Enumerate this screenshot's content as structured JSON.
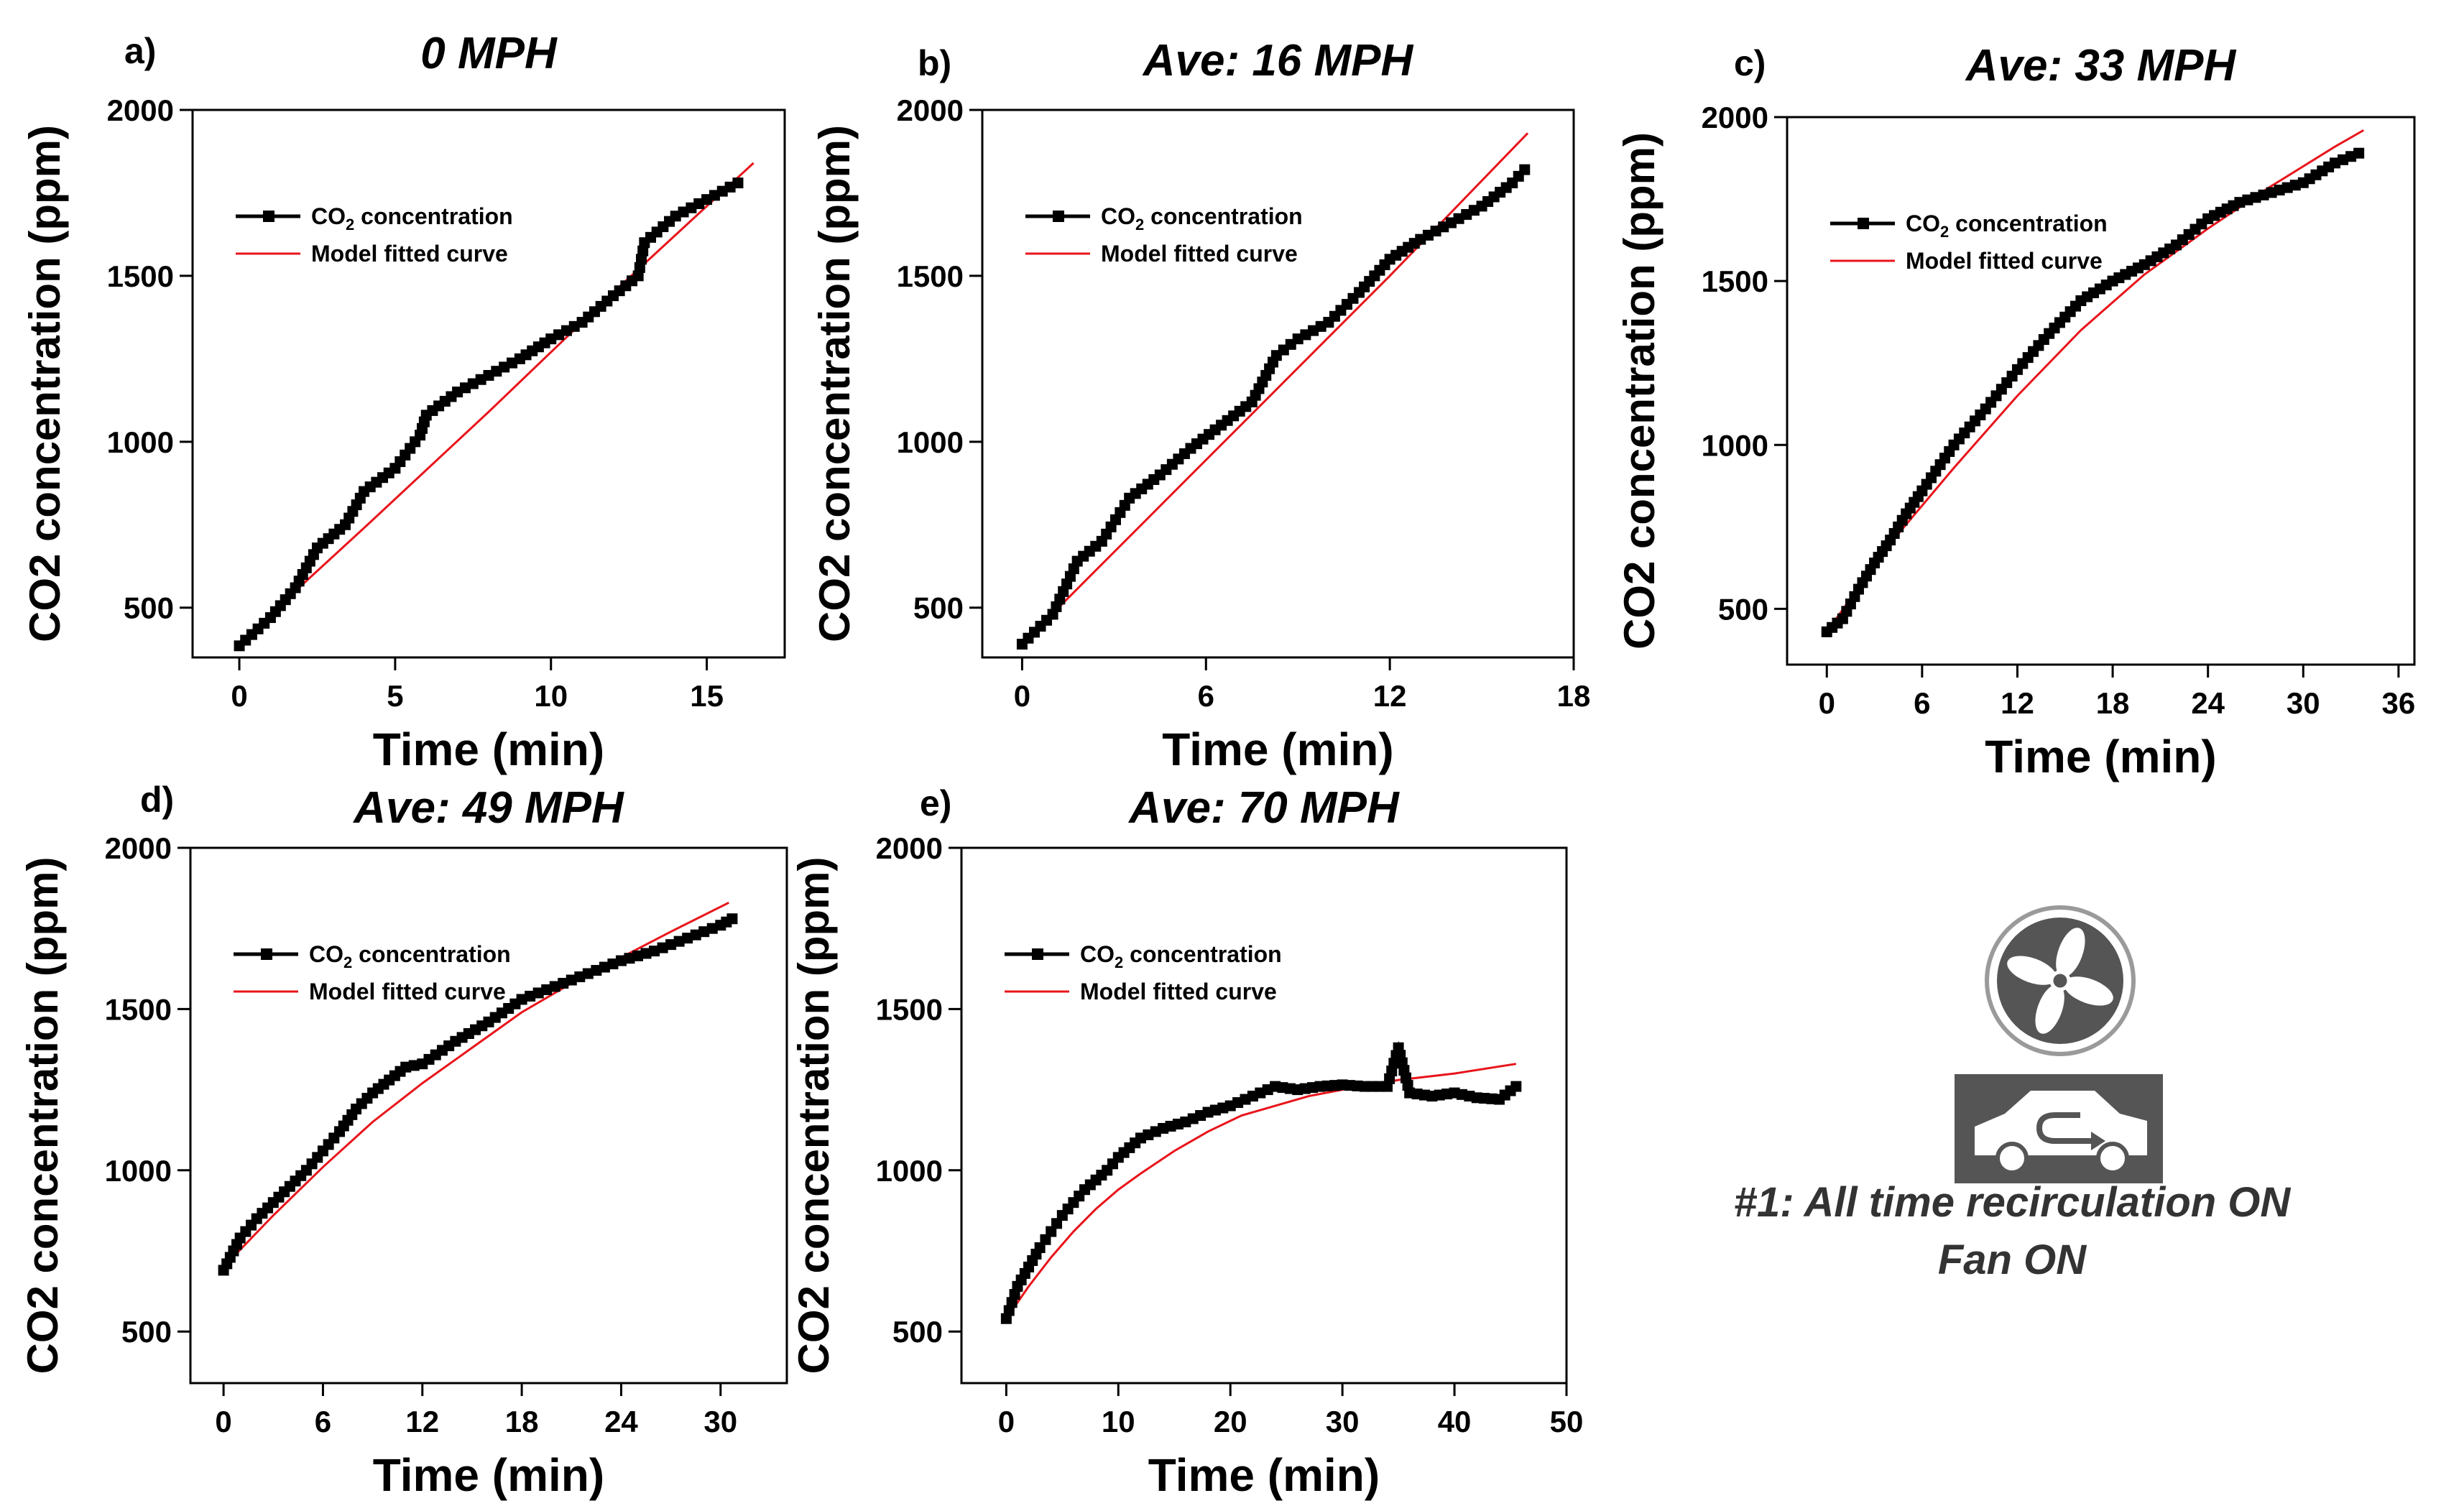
{
  "colors": {
    "data_series": "#000000",
    "model_curve": "#e8141b",
    "icon_gray": "#555555",
    "caption": "#333333"
  },
  "legend": {
    "series_prefix": "CO",
    "series_subscript": "2",
    "series_suffix": " concentration",
    "model_label": "Model fitted curve"
  },
  "ylabel_main": "CO2 concentration (ppm)",
  "xlabel_main": "Time (min)",
  "chart_data": [
    {
      "id": "a",
      "panel_label": "a)",
      "title": "0 MPH",
      "type": "line",
      "xlabel": "Time (min)",
      "ylabel": "CO2 concentration (ppm)",
      "xlim": [
        -1.5,
        17.5
      ],
      "ylim": [
        350,
        2000
      ],
      "xticks": [
        0,
        5,
        10,
        15
      ],
      "yticks": [
        500,
        1000,
        1500,
        2000
      ],
      "series": [
        {
          "name": "CO2 concentration",
          "marker": "square",
          "x": [
            0,
            1,
            1.8,
            2.5,
            3.4,
            4.0,
            5.0,
            5.8,
            6.0,
            7.0,
            8.0,
            9.0,
            10.0,
            11.0,
            12.0,
            12.8,
            13.0,
            14.0,
            15.0,
            16.0
          ],
          "y": [
            385,
            470,
            560,
            680,
            750,
            850,
            920,
            1020,
            1080,
            1150,
            1200,
            1250,
            1310,
            1360,
            1440,
            1500,
            1600,
            1680,
            1730,
            1780
          ]
        },
        {
          "name": "Model fitted curve",
          "marker": "none",
          "x": [
            0,
            4,
            8,
            12,
            16.5
          ],
          "y": [
            395,
            740,
            1090,
            1450,
            1840
          ]
        }
      ]
    },
    {
      "id": "b",
      "panel_label": "b)",
      "title": "Ave: 16 MPH",
      "type": "line",
      "xlabel": "Time (min)",
      "ylabel": "CO2 concentration (ppm)",
      "xlim": [
        -1.3,
        18
      ],
      "ylim": [
        350,
        2000
      ],
      "xticks": [
        0,
        6,
        12,
        18
      ],
      "yticks": [
        500,
        1000,
        1500,
        2000
      ],
      "series": [
        {
          "name": "CO2 concentration",
          "marker": "square",
          "x": [
            0,
            1,
            1.8,
            2.6,
            3.5,
            4.5,
            5.5,
            6.5,
            7.5,
            8.3,
            9.0,
            10.0,
            11.0,
            12.0,
            13.0,
            14.0,
            15.0,
            16.0,
            16.4
          ],
          "y": [
            390,
            480,
            640,
            700,
            830,
            900,
            980,
            1050,
            1120,
            1260,
            1310,
            1360,
            1450,
            1550,
            1610,
            1660,
            1710,
            1780,
            1820
          ]
        },
        {
          "name": "Model fitted curve",
          "marker": "none",
          "x": [
            0,
            4,
            8,
            12,
            16.5
          ],
          "y": [
            390,
            760,
            1130,
            1500,
            1930
          ]
        }
      ]
    },
    {
      "id": "c",
      "panel_label": "c)",
      "title": "Ave: 33 MPH",
      "type": "line",
      "xlabel": "Time (min)",
      "ylabel": "CO2 concentration (ppm)",
      "xlim": [
        -2.5,
        37
      ],
      "ylim": [
        330,
        2000
      ],
      "xticks": [
        0,
        6,
        12,
        18,
        24,
        30,
        36
      ],
      "yticks": [
        500,
        1000,
        1500,
        2000
      ],
      "series": [
        {
          "name": "CO2 concentration",
          "marker": "square",
          "x": [
            0,
            1,
            2,
            3,
            4,
            5,
            6,
            8,
            10,
            12,
            14,
            16,
            18,
            20,
            22,
            24,
            26,
            28,
            30,
            32,
            33.5
          ],
          "y": [
            430,
            470,
            560,
            640,
            710,
            790,
            860,
            1000,
            1110,
            1230,
            1340,
            1440,
            1500,
            1550,
            1610,
            1690,
            1740,
            1770,
            1800,
            1860,
            1890
          ]
        },
        {
          "name": "Model fitted curve",
          "marker": "none",
          "x": [
            0,
            4,
            8,
            12,
            16,
            20,
            24,
            28,
            32,
            33.8
          ],
          "y": [
            430,
            700,
            930,
            1150,
            1350,
            1520,
            1660,
            1790,
            1910,
            1960
          ]
        }
      ]
    },
    {
      "id": "d",
      "panel_label": "d)",
      "title": "Ave: 49 MPH",
      "type": "line",
      "xlabel": "Time (min)",
      "ylabel": "CO2 concentration (ppm)",
      "xlim": [
        -2,
        34
      ],
      "ylim": [
        340,
        2000
      ],
      "xticks": [
        0,
        6,
        12,
        18,
        24,
        30
      ],
      "yticks": [
        500,
        1000,
        1500,
        2000
      ],
      "series": [
        {
          "name": "CO2 concentration",
          "marker": "square",
          "x": [
            0,
            1,
            2,
            3,
            4,
            5,
            6,
            7,
            8,
            9,
            10,
            11,
            12,
            14,
            16,
            18,
            20,
            22,
            24,
            26,
            28,
            30,
            30.7
          ],
          "y": [
            690,
            790,
            850,
            900,
            950,
            1000,
            1060,
            1120,
            1190,
            1240,
            1280,
            1320,
            1330,
            1400,
            1460,
            1530,
            1570,
            1610,
            1650,
            1680,
            1720,
            1760,
            1780
          ]
        },
        {
          "name": "Model fitted curve",
          "marker": "none",
          "x": [
            0,
            3,
            6,
            9,
            12,
            15,
            18,
            21,
            24,
            27,
            30.5
          ],
          "y": [
            700,
            860,
            1010,
            1150,
            1270,
            1380,
            1490,
            1580,
            1660,
            1740,
            1830
          ]
        }
      ]
    },
    {
      "id": "e",
      "panel_label": "e)",
      "title": "Ave: 70 MPH",
      "type": "line",
      "xlabel": "Time (min)",
      "ylabel": "CO2 concentration (ppm)",
      "xlim": [
        -4,
        50
      ],
      "ylim": [
        340,
        2000
      ],
      "xticks": [
        0,
        10,
        20,
        30,
        40,
        50
      ],
      "yticks": [
        500,
        1000,
        1500,
        2000
      ],
      "series": [
        {
          "name": "CO2 concentration",
          "marker": "square",
          "x": [
            0,
            1,
            2,
            3,
            4,
            5,
            6,
            7,
            8,
            9,
            10,
            11,
            12,
            14,
            16,
            18,
            20,
            22,
            24,
            26,
            28,
            30,
            32,
            34,
            35,
            36,
            38,
            40,
            42,
            44,
            45.5
          ],
          "y": [
            540,
            640,
            700,
            760,
            810,
            860,
            900,
            940,
            970,
            1000,
            1040,
            1070,
            1100,
            1130,
            1150,
            1180,
            1200,
            1230,
            1260,
            1250,
            1260,
            1265,
            1260,
            1260,
            1380,
            1240,
            1230,
            1240,
            1225,
            1220,
            1260
          ]
        },
        {
          "name": "Model fitted curve",
          "marker": "none",
          "x": [
            0,
            2,
            4,
            6,
            8,
            10,
            12,
            15,
            18,
            21,
            24,
            27,
            30,
            35,
            40,
            45.5
          ],
          "y": [
            540,
            640,
            730,
            810,
            880,
            940,
            990,
            1060,
            1120,
            1170,
            1200,
            1230,
            1250,
            1280,
            1300,
            1330
          ]
        }
      ]
    }
  ],
  "side_panel": {
    "icon_fan": "fan-icon",
    "icon_car_recirculation": "car-recirculation-icon",
    "caption_line1": "#1: All time recirculation ON",
    "caption_line2": "Fan ON"
  }
}
